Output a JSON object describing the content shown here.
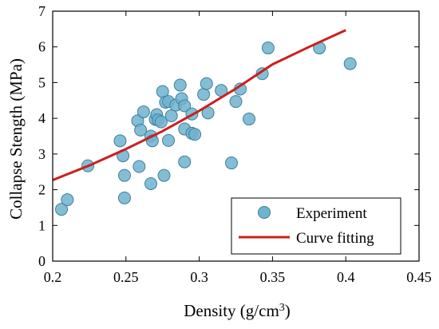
{
  "chart_data": {
    "type": "scatter",
    "xlabel": "Density (g/cm",
    "xlabel_sup": "3",
    "xlabel_close": ")",
    "ylabel": "Collapse Stength (MPa)",
    "xlim": [
      0.2,
      0.45
    ],
    "ylim": [
      0,
      7
    ],
    "x_ticks": [
      0.2,
      0.25,
      0.3,
      0.35,
      0.4,
      0.45
    ],
    "y_ticks": [
      0,
      1,
      2,
      3,
      4,
      5,
      6,
      7
    ],
    "x_tick_labels": [
      "0.2",
      "0.25",
      "0.3",
      "0.35",
      "0.4",
      "0.45"
    ],
    "y_tick_labels": [
      "0",
      "1",
      "2",
      "3",
      "4",
      "5",
      "6",
      "7"
    ],
    "grid": false,
    "legend_position": "bottom-right",
    "series": [
      {
        "name": "Experiment",
        "kind": "scatter",
        "marker_color": "#6fb3cf",
        "edge_color": "#3e7f99",
        "points": [
          [
            0.206,
            1.45
          ],
          [
            0.21,
            1.72
          ],
          [
            0.224,
            2.67
          ],
          [
            0.246,
            3.37
          ],
          [
            0.248,
            2.95
          ],
          [
            0.249,
            2.4
          ],
          [
            0.249,
            1.77
          ],
          [
            0.258,
            3.93
          ],
          [
            0.26,
            3.67
          ],
          [
            0.259,
            2.65
          ],
          [
            0.262,
            4.18
          ],
          [
            0.267,
            3.5
          ],
          [
            0.268,
            3.37
          ],
          [
            0.267,
            2.17
          ],
          [
            0.27,
            3.97
          ],
          [
            0.271,
            4.1
          ],
          [
            0.272,
            3.95
          ],
          [
            0.274,
            3.9
          ],
          [
            0.275,
            4.75
          ],
          [
            0.277,
            4.45
          ],
          [
            0.276,
            2.4
          ],
          [
            0.279,
            4.47
          ],
          [
            0.279,
            3.38
          ],
          [
            0.281,
            4.07
          ],
          [
            0.284,
            4.37
          ],
          [
            0.287,
            4.93
          ],
          [
            0.288,
            4.55
          ],
          [
            0.29,
            4.35
          ],
          [
            0.29,
            3.7
          ],
          [
            0.29,
            2.78
          ],
          [
            0.295,
            4.12
          ],
          [
            0.295,
            3.58
          ],
          [
            0.297,
            3.55
          ],
          [
            0.303,
            4.67
          ],
          [
            0.305,
            4.97
          ],
          [
            0.306,
            4.15
          ],
          [
            0.315,
            4.78
          ],
          [
            0.322,
            2.75
          ],
          [
            0.325,
            4.47
          ],
          [
            0.328,
            4.82
          ],
          [
            0.334,
            3.98
          ],
          [
            0.343,
            5.25
          ],
          [
            0.347,
            5.97
          ],
          [
            0.382,
            5.97
          ],
          [
            0.403,
            5.53
          ]
        ]
      },
      {
        "name": "Curve fitting",
        "kind": "line",
        "color": "#cc1f1f",
        "points": [
          [
            0.2,
            2.27
          ],
          [
            0.225,
            2.68
          ],
          [
            0.25,
            3.14
          ],
          [
            0.275,
            3.64
          ],
          [
            0.3,
            4.21
          ],
          [
            0.325,
            4.83
          ],
          [
            0.35,
            5.51
          ],
          [
            0.375,
            6.0
          ],
          [
            0.4,
            6.47
          ]
        ]
      }
    ]
  }
}
